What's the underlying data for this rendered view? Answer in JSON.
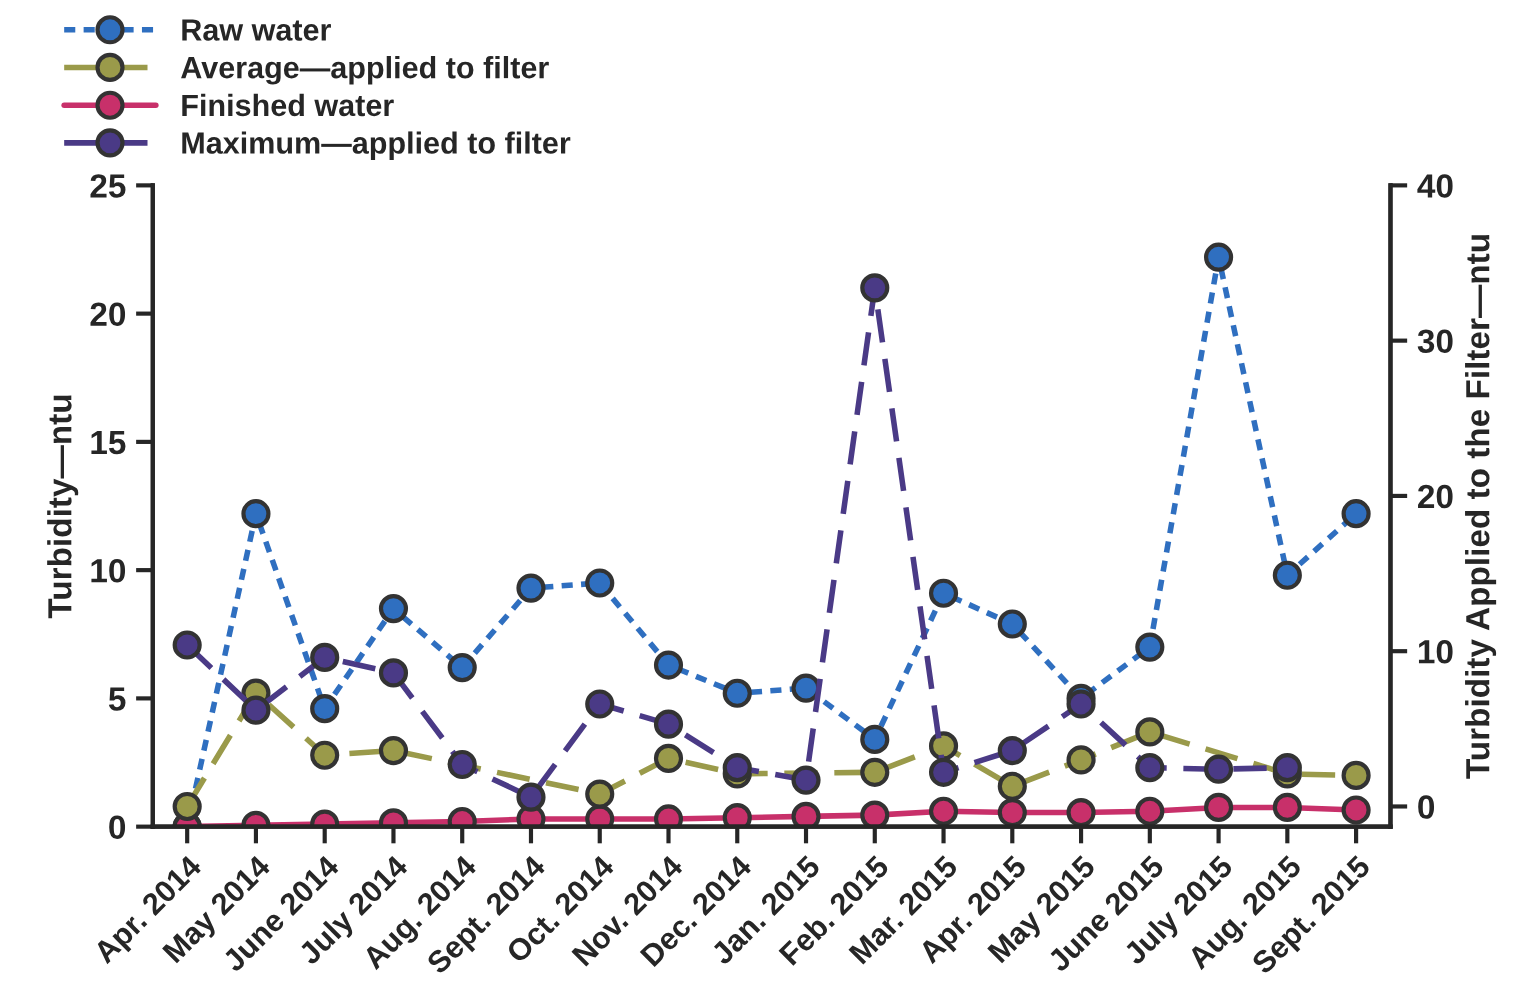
{
  "chart_data": {
    "type": "line",
    "categories": [
      "Apr. 2014",
      "May 2014",
      "June 2014",
      "July 2014",
      "Aug. 2014",
      "Sept. 2014",
      "Oct. 2014",
      "Nov. 2014",
      "Dec. 2014",
      "Jan. 2015",
      "Feb. 2015",
      "Mar. 2015",
      "Apr. 2015",
      "May 2015",
      "June 2015",
      "July 2015",
      "Aug. 2015",
      "Sept. 2015"
    ],
    "series": [
      {
        "name": "Raw water",
        "color": "#2f6fc0",
        "line_style": "dotted",
        "values": [
          0,
          12.2,
          4.6,
          8.5,
          6.2,
          9.3,
          9.5,
          6.3,
          5.2,
          5.4,
          3.4,
          9.1,
          7.9,
          5.0,
          7.0,
          22.2,
          9.8,
          12.2
        ]
      },
      {
        "name": "Average—applied to filter",
        "color": "#9a9a4a",
        "line_style": "dashed",
        "axis": "y2",
        "values": [
          0,
          7.3,
          3.3,
          3.6,
          null,
          null,
          0.8,
          3.1,
          2.1,
          null,
          2.2,
          3.9,
          1.3,
          3.0,
          4.8,
          null,
          2.1,
          2.0
        ]
      },
      {
        "name": "Finished water",
        "color": "#c8306a",
        "line_style": "solid",
        "values": [
          0,
          0.05,
          0.1,
          0.15,
          0.2,
          0.3,
          0.3,
          0.3,
          0.35,
          0.4,
          0.45,
          0.6,
          0.55,
          0.55,
          0.6,
          0.75,
          0.75,
          0.65
        ]
      },
      {
        "name": "Maximum—applied to filter",
        "color": "#4a3a86",
        "line_style": "dashed",
        "axis": "y2",
        "values": [
          10.4,
          6.2,
          9.6,
          8.6,
          2.7,
          0.6,
          6.6,
          5.3,
          2.5,
          1.7,
          33.4,
          2.2,
          3.6,
          6.6,
          2.5,
          2.4,
          2.5,
          null
        ]
      }
    ],
    "ylabel": "Turbidity—ntu",
    "y2label": "Turbidity Applied to the Filter—ntu",
    "ylim": [
      0,
      25
    ],
    "yticks": [
      0,
      5,
      10,
      15,
      20,
      25
    ],
    "y2lim": [
      -1.3,
      40
    ],
    "y2ticks": [
      0,
      10,
      20,
      30,
      40
    ],
    "marker": "circle",
    "legend": "top left",
    "grid": false
  }
}
